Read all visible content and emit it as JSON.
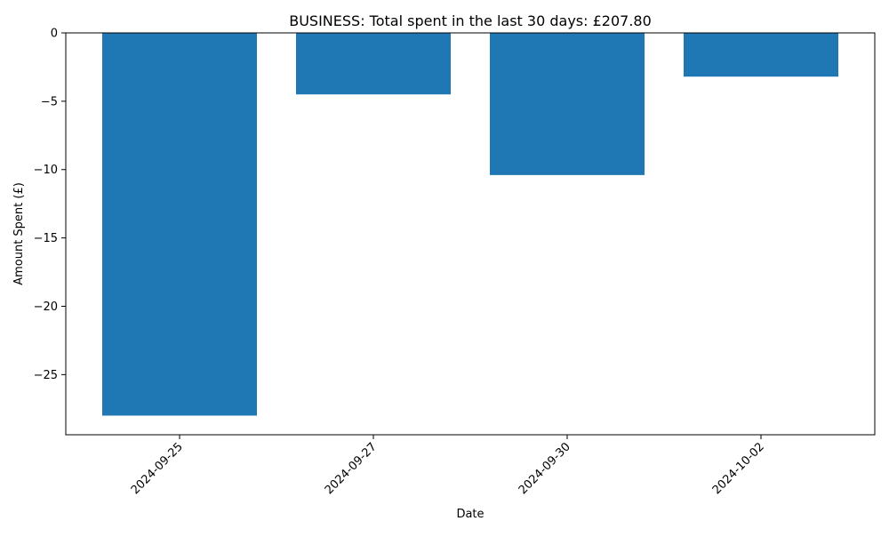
{
  "chart_data": {
    "type": "bar",
    "title": "BUSINESS: Total spent in the last 30 days: £207.80",
    "xlabel": "Date",
    "ylabel": "Amount Spent (£)",
    "categories": [
      "2024-09-25",
      "2024-09-27",
      "2024-09-30",
      "2024-10-02"
    ],
    "values": [
      -28.0,
      -4.5,
      -10.4,
      -3.2
    ],
    "ylim": [
      -29.4,
      0
    ],
    "yticks": [
      0,
      -5,
      -10,
      -15,
      -20,
      -25
    ],
    "ytick_labels": [
      "0",
      "−5",
      "−10",
      "−15",
      "−20",
      "−25"
    ],
    "grid": false,
    "legend": "none",
    "bar_color": "#1f77b4"
  }
}
